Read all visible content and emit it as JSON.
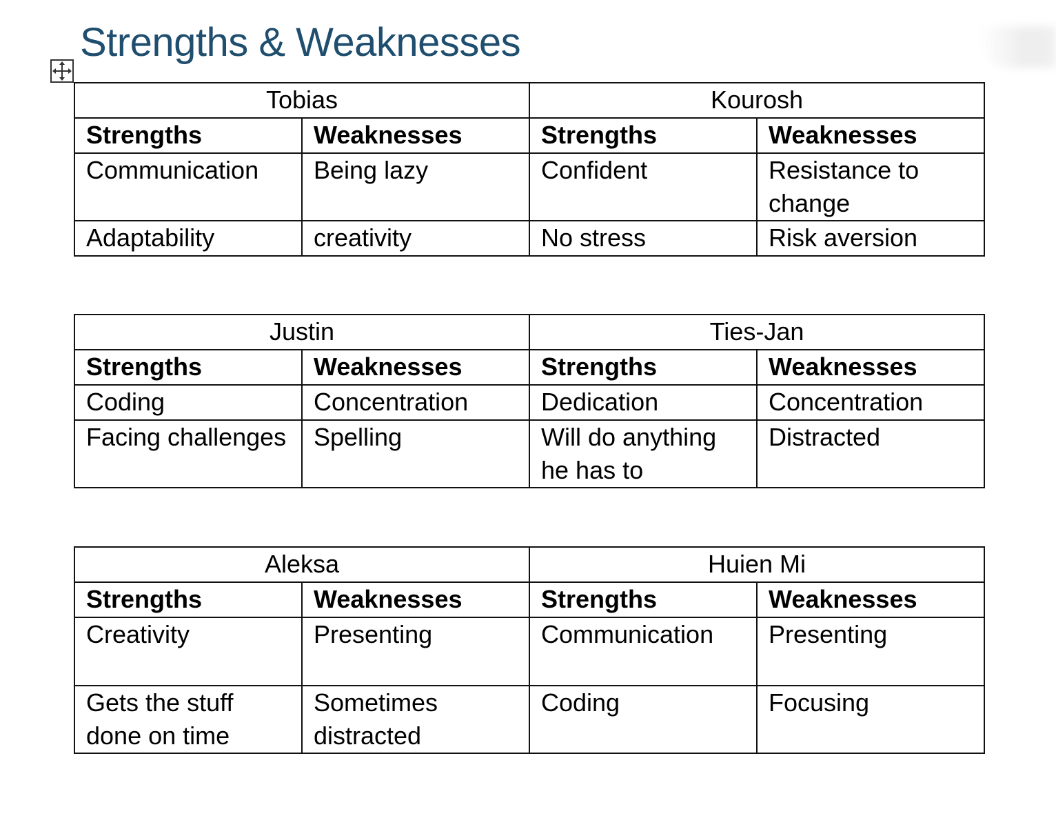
{
  "document": {
    "title": "Strengths & Weaknesses"
  },
  "tables": [
    {
      "people": [
        "Tobias",
        "Kourosh"
      ],
      "headers": [
        "Strengths",
        "Weaknesses",
        "Strengths",
        "Weaknesses"
      ],
      "rows": [
        [
          "Communication",
          "Being lazy",
          "Confident",
          "Resistance to change"
        ],
        [
          "Adaptability",
          "creativity",
          "No stress",
          "Risk aversion"
        ]
      ]
    },
    {
      "people": [
        "Justin",
        "Ties-Jan"
      ],
      "headers": [
        "Strengths",
        "Weaknesses",
        "Strengths",
        "Weaknesses"
      ],
      "rows": [
        [
          "Coding",
          "Concentration",
          "Dedication",
          "Concentration"
        ],
        [
          "Facing challenges",
          "Spelling",
          "Will do anything he has to",
          "Distracted"
        ]
      ]
    },
    {
      "people": [
        "Aleksa",
        "Huien Mi"
      ],
      "headers": [
        "Strengths",
        "Weaknesses",
        "Strengths",
        "Weaknesses"
      ],
      "rows": [
        [
          "Creativity",
          "Presenting",
          "Communication",
          "Presenting"
        ],
        [
          "Gets the stuff done on time",
          "Sometimes distracted",
          "Coding",
          "Focusing"
        ]
      ]
    }
  ],
  "icons": {
    "table_move_handle": "move-arrows-icon"
  }
}
